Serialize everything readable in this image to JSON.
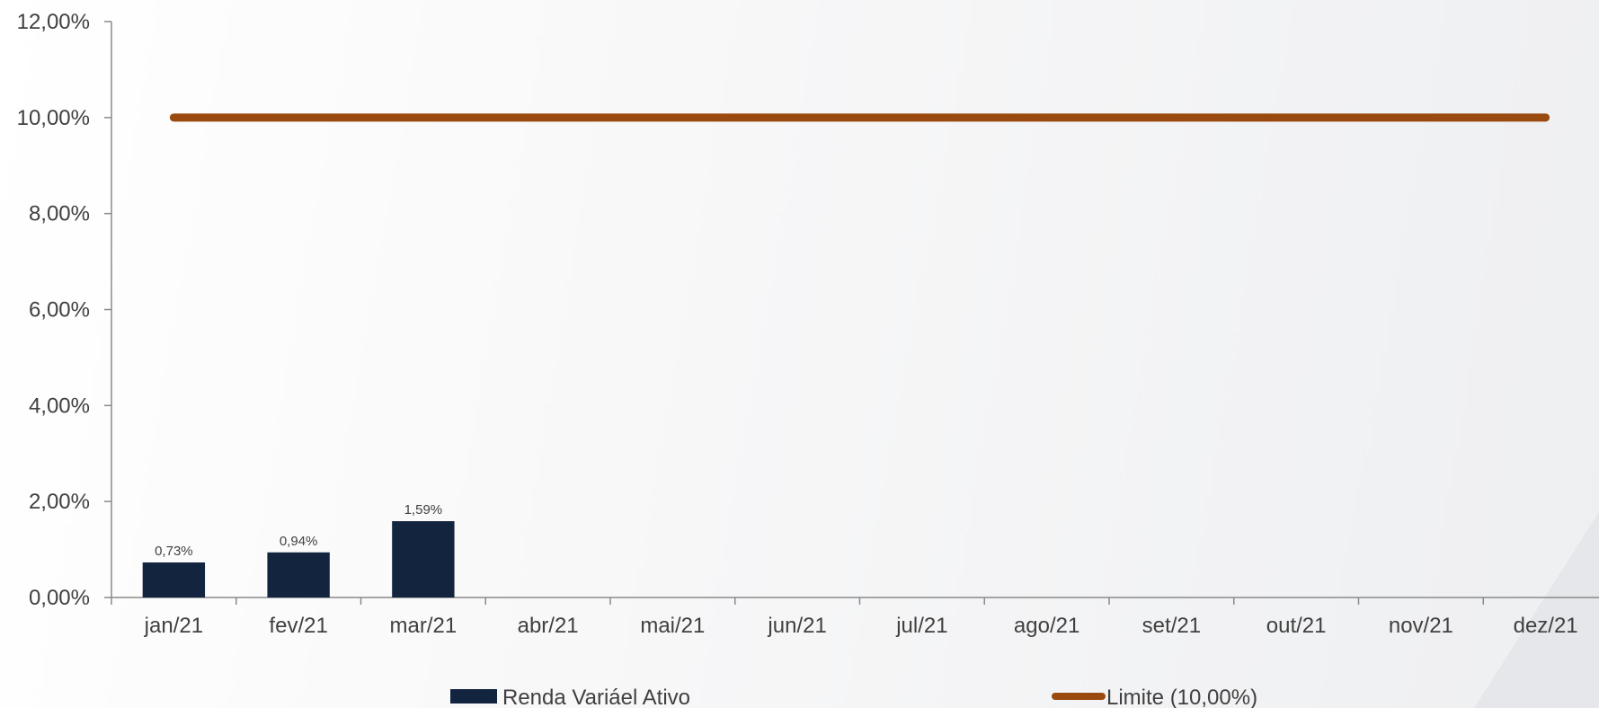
{
  "chart_data": {
    "type": "bar",
    "categories": [
      "jan/21",
      "fev/21",
      "mar/21",
      "abr/21",
      "mai/21",
      "jun/21",
      "jul/21",
      "ago/21",
      "set/21",
      "out/21",
      "nov/21",
      "dez/21"
    ],
    "series": [
      {
        "name": "Renda Variáel Ativo",
        "kind": "bar",
        "color": "#13243f",
        "values": [
          0.73,
          0.94,
          1.59,
          null,
          null,
          null,
          null,
          null,
          null,
          null,
          null,
          null
        ],
        "labels": [
          "0,73%",
          "0,94%",
          "1,59%",
          "",
          "",
          "",
          "",
          "",
          "",
          "",
          "",
          ""
        ]
      },
      {
        "name": "Limite (10,00%)",
        "kind": "line",
        "color": "#9b4a0f",
        "values": [
          10,
          10,
          10,
          10,
          10,
          10,
          10,
          10,
          10,
          10,
          10,
          10
        ]
      }
    ],
    "ylim": [
      0,
      12
    ],
    "yticks": [
      0,
      2,
      4,
      6,
      8,
      10,
      12
    ],
    "ytick_labels": [
      "0,00%",
      "2,00%",
      "4,00%",
      "6,00%",
      "8,00%",
      "10,00%",
      "12,00%"
    ],
    "grid": false,
    "legend": "bottom",
    "title": "",
    "xlabel": "",
    "ylabel": ""
  }
}
